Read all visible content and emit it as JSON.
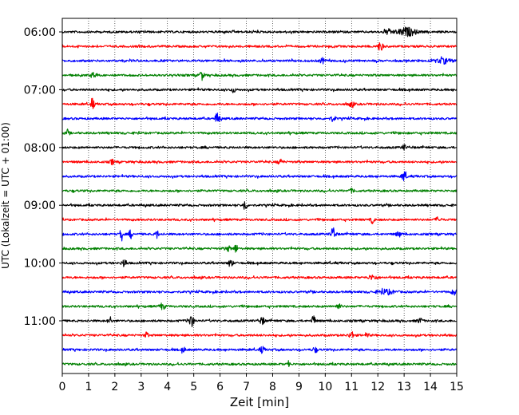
{
  "chart_data": {
    "type": "line",
    "title": "",
    "xlabel": "Zeit  [min]",
    "ylabel": "UTC (Lokalzeit = UTC + 01:00)",
    "xlim": [
      0,
      15
    ],
    "x_ticks": [
      0,
      1,
      2,
      3,
      4,
      5,
      6,
      7,
      8,
      9,
      10,
      11,
      12,
      13,
      14,
      15
    ],
    "x_tick_labels": [
      "0",
      "1",
      "2",
      "3",
      "4",
      "5",
      "6",
      "7",
      "8",
      "9",
      "10",
      "11",
      "12",
      "13",
      "14",
      "15"
    ],
    "y_ticks": [
      {
        "label": "06:00",
        "trace": 0
      },
      {
        "label": "07:00",
        "trace": 4
      },
      {
        "label": "08:00",
        "trace": 8
      },
      {
        "label": "09:00",
        "trace": 12
      },
      {
        "label": "10:00",
        "trace": 16
      },
      {
        "label": "11:00",
        "trace": 20
      }
    ],
    "grid": "vertical dotted",
    "trace_interval_min": 15,
    "color_cycle": [
      "#000000",
      "#ff0000",
      "#0000ff",
      "#008000"
    ],
    "series": [
      {
        "start": "06:00",
        "color": "#000000",
        "bursts": [
          {
            "x": 13.1,
            "a": 5,
            "w": 0.35
          },
          {
            "x": 12.4,
            "a": 3,
            "w": 0.15
          }
        ]
      },
      {
        "start": "06:15",
        "color": "#ff0000",
        "bursts": [
          {
            "x": 12.1,
            "a": 7,
            "w": 0.08
          }
        ]
      },
      {
        "start": "06:30",
        "color": "#0000ff",
        "bursts": [
          {
            "x": 9.9,
            "a": 3,
            "w": 0.1
          },
          {
            "x": 14.5,
            "a": 3,
            "w": 0.3
          }
        ]
      },
      {
        "start": "06:45",
        "color": "#008000",
        "bursts": [
          {
            "x": 5.3,
            "a": 6,
            "w": 0.08
          },
          {
            "x": 1.2,
            "a": 4,
            "w": 0.08
          }
        ]
      },
      {
        "start": "07:00",
        "color": "#000000",
        "bursts": [
          {
            "x": 6.5,
            "a": 3,
            "w": 0.08
          }
        ]
      },
      {
        "start": "07:15",
        "color": "#ff0000",
        "bursts": [
          {
            "x": 1.15,
            "a": 8,
            "w": 0.06
          },
          {
            "x": 11.0,
            "a": 3,
            "w": 0.1
          }
        ]
      },
      {
        "start": "07:30",
        "color": "#0000ff",
        "bursts": [
          {
            "x": 5.9,
            "a": 8,
            "w": 0.08
          },
          {
            "x": 10.3,
            "a": 3,
            "w": 0.1
          }
        ]
      },
      {
        "start": "07:45",
        "color": "#008000",
        "bursts": [
          {
            "x": 0.2,
            "a": 3,
            "w": 0.06
          }
        ]
      },
      {
        "start": "08:00",
        "color": "#000000",
        "bursts": [
          {
            "x": 13.0,
            "a": 3,
            "w": 0.08
          }
        ]
      },
      {
        "start": "08:15",
        "color": "#ff0000",
        "bursts": [
          {
            "x": 1.9,
            "a": 3,
            "w": 0.08
          },
          {
            "x": 8.3,
            "a": 3,
            "w": 0.1
          }
        ]
      },
      {
        "start": "08:30",
        "color": "#0000ff",
        "bursts": [
          {
            "x": 13.0,
            "a": 7,
            "w": 0.08
          }
        ]
      },
      {
        "start": "08:45",
        "color": "#008000",
        "bursts": [
          {
            "x": 11.0,
            "a": 2,
            "w": 0.1
          }
        ]
      },
      {
        "start": "09:00",
        "color": "#000000",
        "bursts": [
          {
            "x": 6.95,
            "a": 9,
            "w": 0.06
          }
        ]
      },
      {
        "start": "09:15",
        "color": "#ff0000",
        "bursts": [
          {
            "x": 11.8,
            "a": 5,
            "w": 0.06
          },
          {
            "x": 14.3,
            "a": 3,
            "w": 0.1
          }
        ]
      },
      {
        "start": "09:30",
        "color": "#0000ff",
        "bursts": [
          {
            "x": 2.25,
            "a": 8,
            "w": 0.06
          },
          {
            "x": 2.6,
            "a": 5,
            "w": 0.06
          },
          {
            "x": 3.6,
            "a": 5,
            "w": 0.06
          },
          {
            "x": 10.3,
            "a": 9,
            "w": 0.08
          },
          {
            "x": 12.8,
            "a": 3,
            "w": 0.1
          }
        ]
      },
      {
        "start": "09:45",
        "color": "#008000",
        "bursts": [
          {
            "x": 6.6,
            "a": 6,
            "w": 0.06
          },
          {
            "x": 6.3,
            "a": 3,
            "w": 0.1
          }
        ]
      },
      {
        "start": "10:00",
        "color": "#000000",
        "bursts": [
          {
            "x": 2.35,
            "a": 5,
            "w": 0.08
          },
          {
            "x": 6.4,
            "a": 5,
            "w": 0.08
          }
        ]
      },
      {
        "start": "10:15",
        "color": "#ff0000",
        "bursts": [
          {
            "x": 11.8,
            "a": 3,
            "w": 0.15
          }
        ]
      },
      {
        "start": "10:30",
        "color": "#0000ff",
        "bursts": [
          {
            "x": 12.3,
            "a": 3,
            "w": 0.3
          },
          {
            "x": 14.9,
            "a": 3,
            "w": 0.1
          }
        ]
      },
      {
        "start": "10:45",
        "color": "#008000",
        "bursts": [
          {
            "x": 3.8,
            "a": 4,
            "w": 0.1
          },
          {
            "x": 10.5,
            "a": 3,
            "w": 0.1
          }
        ]
      },
      {
        "start": "11:00",
        "color": "#000000",
        "bursts": [
          {
            "x": 1.8,
            "a": 6,
            "w": 0.06
          },
          {
            "x": 4.9,
            "a": 7,
            "w": 0.1
          },
          {
            "x": 9.55,
            "a": 11,
            "w": 0.05
          },
          {
            "x": 7.6,
            "a": 4,
            "w": 0.1
          },
          {
            "x": 13.6,
            "a": 3,
            "w": 0.1
          }
        ]
      },
      {
        "start": "11:15",
        "color": "#ff0000",
        "bursts": [
          {
            "x": 3.2,
            "a": 4,
            "w": 0.06
          },
          {
            "x": 11.0,
            "a": 4,
            "w": 0.1
          },
          {
            "x": 11.6,
            "a": 3,
            "w": 0.06
          }
        ]
      },
      {
        "start": "11:30",
        "color": "#0000ff",
        "bursts": [
          {
            "x": 4.6,
            "a": 4,
            "w": 0.06
          },
          {
            "x": 7.6,
            "a": 4,
            "w": 0.08
          },
          {
            "x": 9.6,
            "a": 3,
            "w": 0.08
          }
        ]
      },
      {
        "start": "11:45",
        "color": "#008000",
        "bursts": [
          {
            "x": 8.6,
            "a": 7,
            "w": 0.04
          }
        ]
      }
    ]
  }
}
